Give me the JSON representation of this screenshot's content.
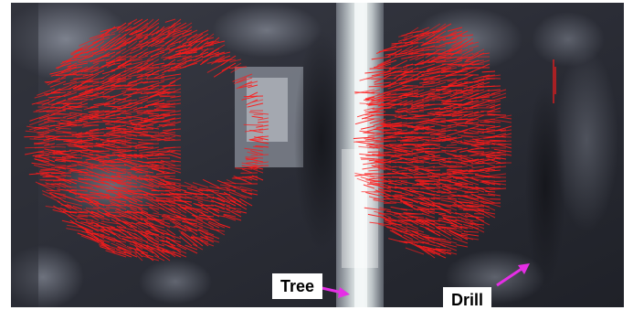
{
  "image": {
    "description_free": true
  },
  "labels": {
    "tree": "Tree",
    "drill": "Drill"
  },
  "colors": {
    "vector": "#ff1a1a",
    "pointer": "#e52ee5",
    "label_bg": "#ffffff",
    "label_text": "#000000"
  },
  "icons": {
    "tree_pointer": "arrow-right-icon",
    "drill_pointer": "arrow-up-right-icon"
  }
}
